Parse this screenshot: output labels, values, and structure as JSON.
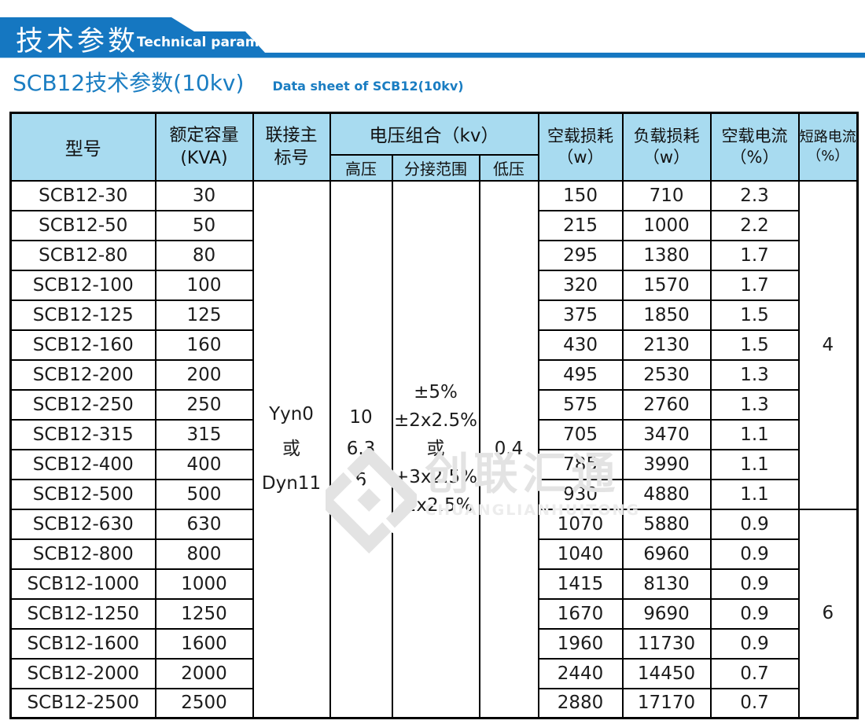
{
  "colors": {
    "banner_blue": "#1577c1",
    "title_blue": "#1a7dc2",
    "table_header_bg": "#a8dbf0",
    "watermark_gray": "#e3e3e3",
    "border_black": "#000000"
  },
  "banner": {
    "title_cn": "技术参数",
    "title_en": "Technical parameter"
  },
  "page_title": {
    "cn": "SCB12技术参数(10kv)",
    "en": "Data sheet of SCB12(10kv)"
  },
  "table": {
    "header": {
      "model": "型号",
      "capacity_line1": "额定容量",
      "capacity_line2": "(KVA)",
      "vector_line1": "联接主",
      "vector_line2": "标号",
      "voltage_group": "电压组合（kv）",
      "hv": "高压",
      "tap_range": "分接范围",
      "lv": "低压",
      "no_load_loss_line1": "空载损耗",
      "no_load_loss_line2": "（w）",
      "load_loss_line1": "负载损耗",
      "load_loss_line2": "（w）",
      "no_load_current_line1": "空载电流",
      "no_load_current_line2": "（%）",
      "short_circuit_line1": "短路电流",
      "short_circuit_line2": "（%）"
    },
    "merged": {
      "vector_lines": [
        "Yyn0",
        "或",
        "Dyn11"
      ],
      "hv_lines": [
        "10",
        "6.3",
        "6"
      ],
      "tap_lines": [
        "±5%",
        "±2x2.5%",
        "或+3x2.5%",
        "-1x2.5%"
      ],
      "lv": "0.4",
      "impedance_groups": [
        {
          "value": "4",
          "rows": 11
        },
        {
          "value": "6",
          "rows": 7
        }
      ]
    },
    "rows": [
      {
        "model": "SCB12-30",
        "capacity": "30",
        "no_load_loss": "150",
        "load_loss": "710",
        "no_load_current": "2.3"
      },
      {
        "model": "SCB12-50",
        "capacity": "50",
        "no_load_loss": "215",
        "load_loss": "1000",
        "no_load_current": "2.2"
      },
      {
        "model": "SCB12-80",
        "capacity": "80",
        "no_load_loss": "295",
        "load_loss": "1380",
        "no_load_current": "1.7"
      },
      {
        "model": "SCB12-100",
        "capacity": "100",
        "no_load_loss": "320",
        "load_loss": "1570",
        "no_load_current": "1.7"
      },
      {
        "model": "SCB12-125",
        "capacity": "125",
        "no_load_loss": "375",
        "load_loss": "1850",
        "no_load_current": "1.5"
      },
      {
        "model": "SCB12-160",
        "capacity": "160",
        "no_load_loss": "430",
        "load_loss": "2130",
        "no_load_current": "1.5"
      },
      {
        "model": "SCB12-200",
        "capacity": "200",
        "no_load_loss": "495",
        "load_loss": "2530",
        "no_load_current": "1.3"
      },
      {
        "model": "SCB12-250",
        "capacity": "250",
        "no_load_loss": "575",
        "load_loss": "2760",
        "no_load_current": "1.3"
      },
      {
        "model": "SCB12-315",
        "capacity": "315",
        "no_load_loss": "705",
        "load_loss": "3470",
        "no_load_current": "1.1"
      },
      {
        "model": "SCB12-400",
        "capacity": "400",
        "no_load_loss": "785",
        "load_loss": "3990",
        "no_load_current": "1.1"
      },
      {
        "model": "SCB12-500",
        "capacity": "500",
        "no_load_loss": "930",
        "load_loss": "4880",
        "no_load_current": "1.1"
      },
      {
        "model": "SCB12-630",
        "capacity": "630",
        "no_load_loss": "1070",
        "load_loss": "5880",
        "no_load_current": "0.9"
      },
      {
        "model": "SCB12-800",
        "capacity": "800",
        "no_load_loss": "1040",
        "load_loss": "6960",
        "no_load_current": "0.9"
      },
      {
        "model": "SCB12-1000",
        "capacity": "1000",
        "no_load_loss": "1415",
        "load_loss": "8130",
        "no_load_current": "0.9"
      },
      {
        "model": "SCB12-1250",
        "capacity": "1250",
        "no_load_loss": "1670",
        "load_loss": "9690",
        "no_load_current": "0.9"
      },
      {
        "model": "SCB12-1600",
        "capacity": "1600",
        "no_load_loss": "1960",
        "load_loss": "11730",
        "no_load_current": "0.9"
      },
      {
        "model": "SCB12-2000",
        "capacity": "2000",
        "no_load_loss": "2440",
        "load_loss": "14450",
        "no_load_current": "0.7"
      },
      {
        "model": "SCB12-2500",
        "capacity": "2500",
        "no_load_loss": "2880",
        "load_loss": "17170",
        "no_load_current": "0.7"
      }
    ]
  },
  "watermark": {
    "cn": "创联汇通",
    "en": "CHUANGLIANHUITONG"
  }
}
